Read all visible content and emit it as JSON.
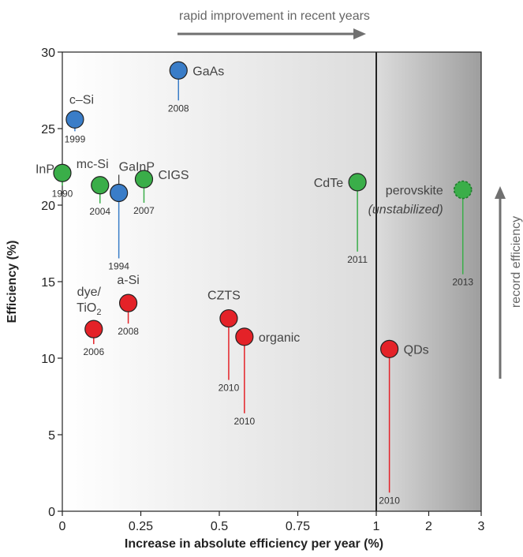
{
  "chart_data": {
    "type": "scatter",
    "title": "",
    "xlabel": "Increase in absolute efficiency per year (%)",
    "ylabel": "Efficiency (%)",
    "ylim": [
      0,
      30
    ],
    "x_segments": [
      {
        "range": [
          0,
          1
        ],
        "ticks": [
          "0",
          "0.25",
          "0.5",
          "0.75",
          "1"
        ]
      },
      {
        "range": [
          1,
          3
        ],
        "ticks": [
          "2",
          "3"
        ]
      }
    ],
    "y_ticks": [
      "0",
      "5",
      "10",
      "15",
      "20",
      "25",
      "30"
    ],
    "grid": false,
    "top_annotation": "rapid improvement in recent years",
    "right_annotation": "record efficiency",
    "colors": {
      "blue": "#3a7dc8",
      "green": "#3aae49",
      "red": "#e42228"
    },
    "series": [
      {
        "color_key": "blue",
        "points": [
          {
            "label": "GaAs",
            "year": "2008",
            "x": 0.37,
            "y": 28.8
          },
          {
            "label": "c–Si",
            "year": "1999",
            "x": 0.04,
            "y": 25.6
          },
          {
            "label": "GaInP",
            "year": "1994",
            "x": 0.18,
            "y": 20.8
          }
        ]
      },
      {
        "color_key": "green",
        "points": [
          {
            "label": "InP",
            "year": "1990",
            "x": 0.0,
            "y": 22.1
          },
          {
            "label": "mc-Si",
            "year": "2004",
            "x": 0.12,
            "y": 21.3
          },
          {
            "label": "CIGS",
            "year": "2007",
            "x": 0.26,
            "y": 21.7
          },
          {
            "label": "CdTe",
            "year": "2011",
            "x": 0.94,
            "y": 21.5
          },
          {
            "label": "perovskite",
            "label_sub": "(unstabilized)",
            "year": "2013",
            "x": 2.65,
            "y": 21.0,
            "dashed": true
          }
        ]
      },
      {
        "color_key": "red",
        "points": [
          {
            "label": "dye/ TiO2",
            "year": "2006",
            "x": 0.1,
            "y": 11.9
          },
          {
            "label": "a-Si",
            "year": "2008",
            "x": 0.21,
            "y": 13.6
          },
          {
            "label": "CZTS",
            "year": "2010",
            "x": 0.53,
            "y": 12.6
          },
          {
            "label": "organic",
            "year": "2010",
            "x": 0.58,
            "y": 11.4
          },
          {
            "label": "QDs",
            "year": "2010",
            "x": 1.25,
            "y": 10.6
          }
        ]
      }
    ]
  }
}
